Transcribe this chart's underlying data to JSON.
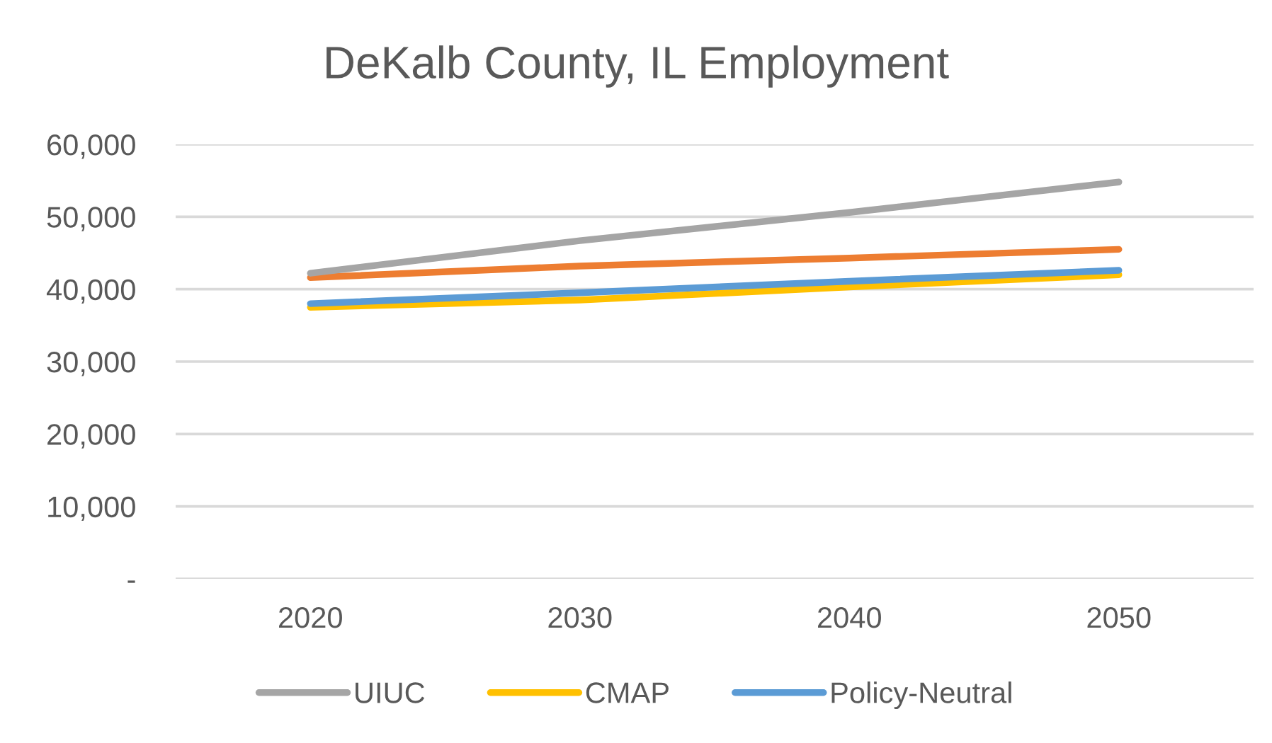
{
  "chart_data": {
    "type": "line",
    "title": "DeKalb County, IL Employment",
    "categories": [
      "2020",
      "2030",
      "2040",
      "2050"
    ],
    "series": [
      {
        "color": "#ed7d31",
        "values": [
          41600,
          43200,
          44300,
          45500
        ]
      },
      {
        "name": "UIUC",
        "color": "#a5a5a5",
        "values": [
          42200,
          46700,
          50600,
          54800
        ]
      },
      {
        "name": "CMAP",
        "color": "#ffc000",
        "values": [
          37500,
          38500,
          40300,
          42000
        ]
      },
      {
        "name": "Policy-Neutral",
        "color": "#5b9bd5",
        "values": [
          38000,
          39500,
          41100,
          42600
        ]
      }
    ],
    "ylim": [
      0,
      60000
    ],
    "yticks": [
      {
        "value": 0,
        "label": "-"
      },
      {
        "value": 10000,
        "label": "10,000"
      },
      {
        "value": 20000,
        "label": "20,000"
      },
      {
        "value": 30000,
        "label": "30,000"
      },
      {
        "value": 40000,
        "label": "40,000"
      },
      {
        "value": 50000,
        "label": "50,000"
      },
      {
        "value": 60000,
        "label": "60,000"
      }
    ],
    "grid": "y",
    "legend": "bottom",
    "marker": "none",
    "line_style": "solid"
  }
}
